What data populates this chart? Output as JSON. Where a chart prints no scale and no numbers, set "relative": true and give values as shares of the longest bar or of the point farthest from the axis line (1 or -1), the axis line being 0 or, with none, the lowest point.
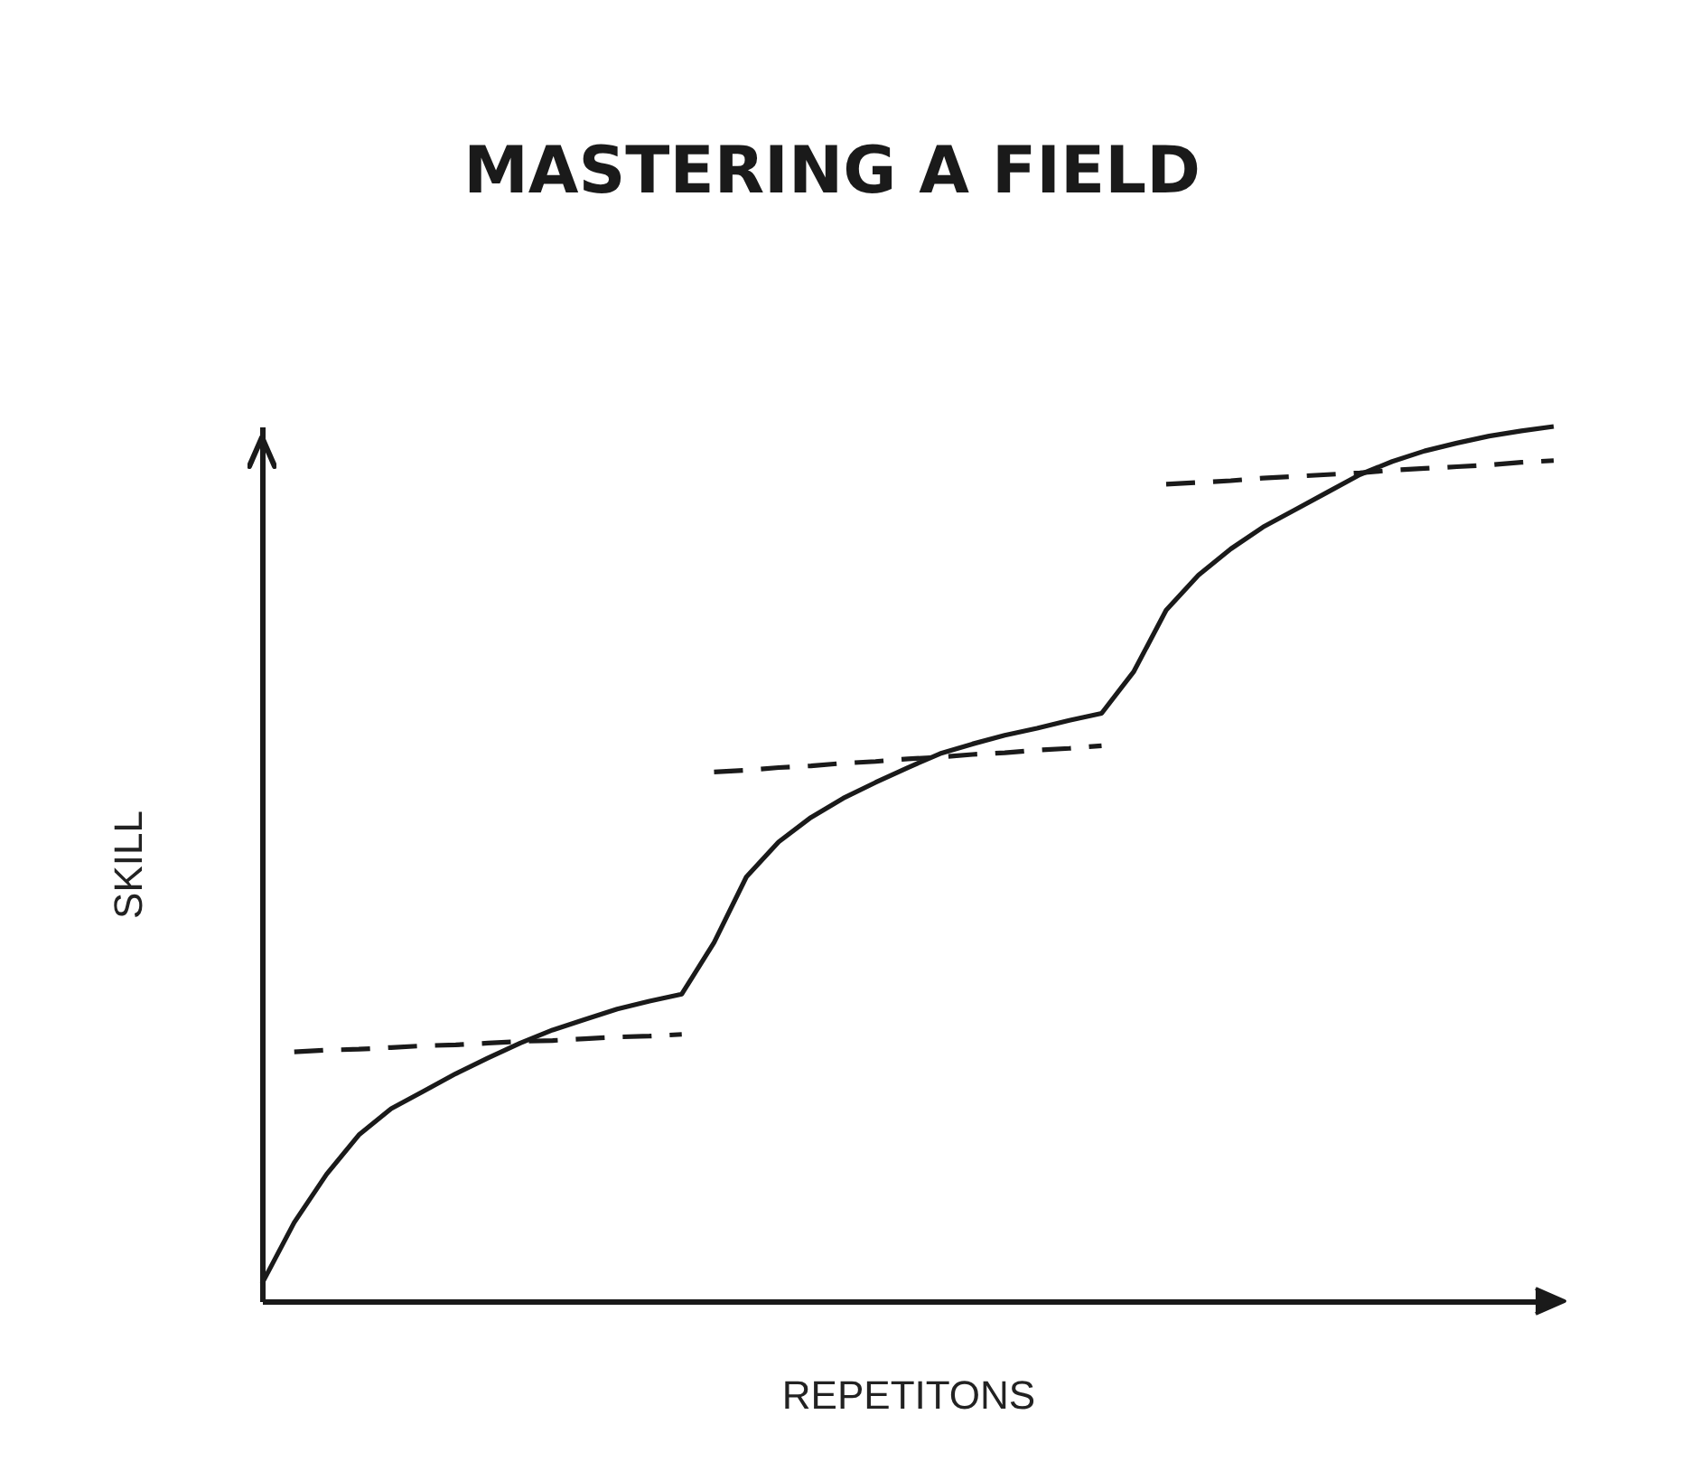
{
  "chart_data": {
    "type": "line",
    "title": "MASTERING A FIELD",
    "xlabel": "REPETITONS",
    "ylabel": "SKILL",
    "relative": true,
    "grid": false,
    "marker": "none",
    "categories": [
      null,
      null,
      null,
      null,
      null,
      null,
      null,
      null,
      null,
      null,
      null,
      null,
      null,
      null,
      null,
      null,
      null,
      null,
      null,
      null,
      null,
      null,
      null,
      null,
      null,
      null,
      null,
      null,
      null,
      null,
      null,
      null,
      null,
      null,
      null,
      null,
      null,
      null,
      null,
      null,
      null
    ],
    "series": [
      {
        "color": "#1a1a1a",
        "line_style": "solid",
        "values": [
          0.02,
          0.09,
          0.145,
          0.19,
          0.22,
          0.24,
          0.26,
          0.278,
          0.295,
          0.31,
          0.322,
          0.334,
          0.343,
          0.351,
          0.41,
          0.485,
          0.525,
          0.553,
          0.575,
          0.593,
          0.61,
          0.626,
          0.637,
          0.647,
          0.655,
          0.664,
          0.672,
          0.72,
          0.79,
          0.83,
          0.86,
          0.885,
          0.905,
          0.925,
          0.945,
          0.96,
          0.972,
          0.981,
          0.989,
          0.995,
          1
        ]
      },
      {
        "color": "#1a1a1a",
        "line_style": "dashed",
        "values": [
          null,
          0.285,
          0.287,
          0.288,
          0.29,
          0.292,
          0.293,
          0.295,
          0.297,
          0.298,
          0.3,
          0.302,
          0.303,
          0.305,
          null,
          null,
          null,
          null,
          null,
          null,
          null,
          null,
          null,
          null,
          null,
          null,
          null,
          null,
          null,
          null,
          null,
          null,
          null,
          null,
          null,
          null,
          null,
          null,
          null,
          null,
          null
        ]
      },
      {
        "color": "#1a1a1a",
        "line_style": "dashed",
        "values": [
          null,
          null,
          null,
          null,
          null,
          null,
          null,
          null,
          null,
          null,
          null,
          null,
          null,
          null,
          0.605,
          0.607,
          0.61,
          0.612,
          0.615,
          0.617,
          0.62,
          0.622,
          0.625,
          0.627,
          0.63,
          0.632,
          0.635,
          null,
          null,
          null,
          null,
          null,
          null,
          null,
          null,
          null,
          null,
          null,
          null,
          null,
          null
        ]
      },
      {
        "color": "#1a1a1a",
        "line_style": "dashed",
        "values": [
          null,
          null,
          null,
          null,
          null,
          null,
          null,
          null,
          null,
          null,
          null,
          null,
          null,
          null,
          null,
          null,
          null,
          null,
          null,
          null,
          null,
          null,
          null,
          null,
          null,
          null,
          null,
          null,
          0.934,
          0.936,
          0.938,
          0.941,
          0.943,
          0.945,
          0.947,
          0.95,
          0.952,
          0.954,
          0.956,
          0.959,
          0.961
        ]
      }
    ]
  }
}
